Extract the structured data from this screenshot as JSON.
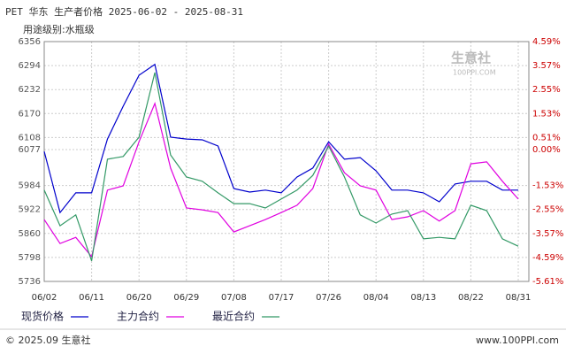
{
  "chart_data": {
    "type": "line",
    "title": "PET 华东 生产者价格 2025-06-02 - 2025-08-31",
    "subtitle": "用途级别:水瓶级",
    "watermark": "生意社",
    "watermark_sub": "100PPI.COM",
    "footer_left": "© 2025.09 生意社",
    "footer_right": "www.100PPI.com",
    "categories": [
      "06/02",
      null,
      null,
      "06/11",
      null,
      null,
      "06/20",
      null,
      null,
      "06/29",
      null,
      null,
      "07/08",
      null,
      null,
      "07/17",
      null,
      null,
      "07/26",
      null,
      null,
      "08/04",
      null,
      null,
      "08/13",
      null,
      null,
      "08/22",
      null,
      null,
      "08/31"
    ],
    "ylim": [
      5736,
      6356
    ],
    "yticks": [
      5736,
      5798,
      5860,
      5922,
      5984,
      6077,
      6108,
      6170,
      6232,
      6294,
      6356
    ],
    "y2lim": [
      -5.61,
      4.59
    ],
    "y2ticks": [
      {
        "value": -5.61,
        "label": "-5.61%"
      },
      {
        "value": -4.59,
        "label": "-4.59%"
      },
      {
        "value": -3.57,
        "label": "-3.57%"
      },
      {
        "value": -2.55,
        "label": "-2.55%"
      },
      {
        "value": -1.53,
        "label": "-1.53%"
      },
      {
        "value": 0,
        "label": "0.00%"
      },
      {
        "value": 0.51,
        "label": "0.51%"
      },
      {
        "value": 1.53,
        "label": "1.53%"
      },
      {
        "value": 2.55,
        "label": "2.55%"
      },
      {
        "value": 3.57,
        "label": "3.57%"
      },
      {
        "value": 4.59,
        "label": "4.59%"
      }
    ],
    "grid": true,
    "series": [
      {
        "name": "现货价格",
        "color": "#0000cc",
        "values": [
          6072,
          5914,
          5965,
          5965,
          6104,
          6189,
          6269,
          6297,
          6109,
          6104,
          6102,
          6086,
          5976,
          5967,
          5972,
          5965,
          6006,
          6029,
          6097,
          6052,
          6056,
          6022,
          5972,
          5972,
          5965,
          5942,
          5988,
          5995,
          5995,
          5972,
          5972
        ]
      },
      {
        "name": "主力合约",
        "color": "#e000e0",
        "values": [
          5896,
          5834,
          5850,
          5800,
          5972,
          5983,
          6097,
          6196,
          6029,
          5926,
          5921,
          5914,
          5864,
          5880,
          5896,
          5914,
          5933,
          5976,
          6091,
          6017,
          5983,
          5972,
          5896,
          5903,
          5919,
          5892,
          5919,
          6040,
          6045,
          5995,
          5949
        ]
      },
      {
        "name": "最近合约",
        "color": "#339966",
        "values": [
          5972,
          5880,
          5908,
          5789,
          6052,
          6059,
          6109,
          6276,
          6063,
          6006,
          5995,
          5965,
          5937,
          5937,
          5926,
          5949,
          5972,
          6010,
          6086,
          6006,
          5908,
          5887,
          5910,
          5919,
          5846,
          5850,
          5846,
          5933,
          5919,
          5846,
          5827
        ]
      }
    ]
  }
}
